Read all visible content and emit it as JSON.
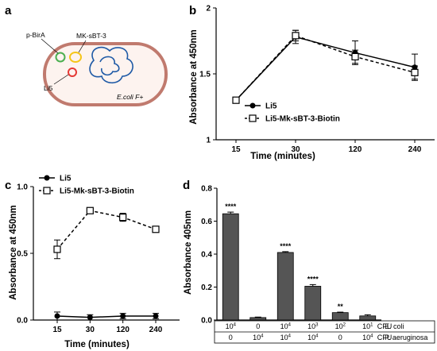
{
  "panels": {
    "a": {
      "letter": "a",
      "labels": {
        "pbira": "p-BirA",
        "mk": "MK-sBT-3",
        "li5": "Li5",
        "host": "E.coli F+"
      },
      "colors": {
        "membrane": "#c07a6e",
        "pbira_ring": "#4caf50",
        "mk_ring": "#f5c518",
        "li5_ring": "#e53935",
        "chromosome": "#1f5aa6"
      }
    },
    "b": {
      "letter": "b"
    },
    "c": {
      "letter": "c"
    },
    "d": {
      "letter": "d"
    }
  },
  "chart_data": [
    {
      "panel": "b",
      "type": "line",
      "xlabel": "Time (minutes)",
      "ylabel": "Absorbance at 450nm",
      "categories": [
        "15",
        "30",
        "120",
        "240"
      ],
      "ylim": [
        1,
        2
      ],
      "yticks": [
        "1",
        "1.5",
        "2"
      ],
      "legend_position": "bottom-right",
      "series": [
        {
          "name": "Li5",
          "marker": "filled-circle",
          "line": "solid",
          "values": [
            1.3,
            1.78,
            1.66,
            1.55
          ],
          "errors": [
            0.02,
            0.05,
            0.09,
            0.1
          ]
        },
        {
          "name": "Li5-Mk-sBT-3-Biotin",
          "marker": "open-square",
          "line": "dashed",
          "values": [
            1.3,
            1.79,
            1.63,
            1.51
          ],
          "errors": [
            0.02,
            0.04,
            0.05,
            0.05
          ]
        }
      ]
    },
    {
      "panel": "c",
      "type": "line",
      "xlabel": "Time (minutes)",
      "ylabel": "Absorbance at 450nm",
      "categories": [
        "15",
        "30",
        "120",
        "240"
      ],
      "ylim": [
        0,
        1.0
      ],
      "yticks": [
        "0.0",
        "0.5",
        "1.0"
      ],
      "legend_position": "top-left",
      "series": [
        {
          "name": "Li5",
          "marker": "filled-circle",
          "line": "solid",
          "values": [
            0.03,
            0.02,
            0.03,
            0.03
          ],
          "errors": [
            0.03,
            0.02,
            0.02,
            0.02
          ]
        },
        {
          "name": "Li5-Mk-sBT-3-Biotin",
          "marker": "open-square",
          "line": "dashed",
          "values": [
            0.53,
            0.82,
            0.77,
            0.68
          ],
          "errors": [
            0.07,
            0.01,
            0.03,
            0.02
          ]
        }
      ]
    },
    {
      "panel": "d",
      "type": "bar",
      "ylabel": "Absorbance 405nm",
      "ylim": [
        0,
        0.8
      ],
      "yticks": [
        "0.0",
        "0.2",
        "0.4",
        "0.6",
        "0.8"
      ],
      "bar_color": "#555555",
      "values": [
        0.645,
        0.015,
        0.41,
        0.205,
        0.045,
        0.025
      ],
      "errors": [
        0.01,
        0.003,
        0.005,
        0.01,
        0.003,
        0.007
      ],
      "significance": [
        "****",
        "",
        "****",
        "****",
        "**",
        ""
      ],
      "table": {
        "rows": [
          {
            "cells": [
              "10",
              "0",
              "10",
              "10",
              "10",
              "10"
            ],
            "exps": [
              "4",
              "",
              "4",
              "3",
              "2",
              "1"
            ],
            "unit": "CFU",
            "organism": "E. coli"
          },
          {
            "cells": [
              "0",
              "10",
              "10",
              "10",
              "0",
              "10"
            ],
            "exps": [
              "",
              "4",
              "4",
              "4",
              "",
              "4"
            ],
            "unit": "CFU",
            "organism": "P. aeruginosa"
          }
        ]
      }
    }
  ]
}
